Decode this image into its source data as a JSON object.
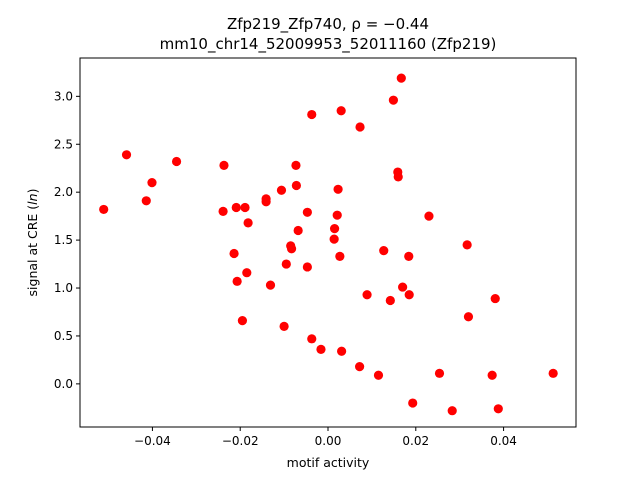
{
  "chart_data": {
    "type": "scatter",
    "title_line1": "Zfp219_Zfp740, ρ = −0.44",
    "title_line2": "mm10_chr14_52009953_52011160 (Zfp219)",
    "xlabel": "motif activity",
    "ylabel_prefix": "signal at CRE (",
    "ylabel_italic": "ln",
    "ylabel_suffix": ")",
    "xlim": [
      -0.0565,
      0.0565
    ],
    "ylim": [
      -0.45,
      3.4
    ],
    "x_ticks": [
      -0.04,
      -0.02,
      0.0,
      0.02,
      0.04
    ],
    "x_tick_labels": [
      "−0.04",
      "−0.02",
      "0.00",
      "0.02",
      "0.04"
    ],
    "y_ticks": [
      0.0,
      0.5,
      1.0,
      1.5,
      2.0,
      2.5,
      3.0
    ],
    "y_tick_labels": [
      "0.0",
      "0.5",
      "1.0",
      "1.5",
      "2.0",
      "2.5",
      "3.0"
    ],
    "grid": false,
    "marker_color": "#ff0000",
    "points": [
      {
        "x": -0.0511,
        "y": 1.82
      },
      {
        "x": -0.0459,
        "y": 2.39
      },
      {
        "x": -0.0414,
        "y": 1.91
      },
      {
        "x": -0.0401,
        "y": 2.1
      },
      {
        "x": -0.0345,
        "y": 2.32
      },
      {
        "x": -0.0237,
        "y": 2.28
      },
      {
        "x": -0.0239,
        "y": 1.8
      },
      {
        "x": -0.0209,
        "y": 1.84
      },
      {
        "x": -0.0189,
        "y": 1.84
      },
      {
        "x": -0.0214,
        "y": 1.36
      },
      {
        "x": -0.0207,
        "y": 1.07
      },
      {
        "x": -0.0185,
        "y": 1.16
      },
      {
        "x": -0.0182,
        "y": 1.68
      },
      {
        "x": -0.0195,
        "y": 0.66
      },
      {
        "x": -0.0141,
        "y": 1.93
      },
      {
        "x": -0.0141,
        "y": 1.9
      },
      {
        "x": -0.0131,
        "y": 1.03
      },
      {
        "x": -0.0106,
        "y": 2.02
      },
      {
        "x": -0.01,
        "y": 0.6
      },
      {
        "x": -0.0095,
        "y": 1.25
      },
      {
        "x": -0.0085,
        "y": 1.44
      },
      {
        "x": -0.0083,
        "y": 1.41
      },
      {
        "x": -0.0073,
        "y": 2.28
      },
      {
        "x": -0.0072,
        "y": 2.07
      },
      {
        "x": -0.0068,
        "y": 1.6
      },
      {
        "x": -0.0047,
        "y": 1.79
      },
      {
        "x": -0.0047,
        "y": 1.22
      },
      {
        "x": -0.0037,
        "y": 2.81
      },
      {
        "x": -0.0037,
        "y": 0.47
      },
      {
        "x": -0.0016,
        "y": 0.36
      },
      {
        "x": 0.0015,
        "y": 1.62
      },
      {
        "x": 0.0014,
        "y": 1.51
      },
      {
        "x": 0.0021,
        "y": 1.76
      },
      {
        "x": 0.0023,
        "y": 2.03
      },
      {
        "x": 0.0027,
        "y": 1.33
      },
      {
        "x": 0.003,
        "y": 2.85
      },
      {
        "x": 0.0031,
        "y": 0.34
      },
      {
        "x": 0.0073,
        "y": 2.68
      },
      {
        "x": 0.0072,
        "y": 0.18
      },
      {
        "x": 0.0089,
        "y": 0.93
      },
      {
        "x": 0.0115,
        "y": 0.09
      },
      {
        "x": 0.0127,
        "y": 1.39
      },
      {
        "x": 0.0142,
        "y": 0.87
      },
      {
        "x": 0.0149,
        "y": 2.96
      },
      {
        "x": 0.0159,
        "y": 2.21
      },
      {
        "x": 0.016,
        "y": 2.16
      },
      {
        "x": 0.0167,
        "y": 3.19
      },
      {
        "x": 0.017,
        "y": 1.01
      },
      {
        "x": 0.0184,
        "y": 1.33
      },
      {
        "x": 0.0185,
        "y": 0.93
      },
      {
        "x": 0.0193,
        "y": -0.2
      },
      {
        "x": 0.023,
        "y": 1.75
      },
      {
        "x": 0.0254,
        "y": 0.11
      },
      {
        "x": 0.0283,
        "y": -0.28
      },
      {
        "x": 0.0317,
        "y": 1.45
      },
      {
        "x": 0.032,
        "y": 0.7
      },
      {
        "x": 0.0374,
        "y": 0.09
      },
      {
        "x": 0.0381,
        "y": 0.89
      },
      {
        "x": 0.0388,
        "y": -0.26
      },
      {
        "x": 0.0513,
        "y": 0.11
      }
    ]
  }
}
